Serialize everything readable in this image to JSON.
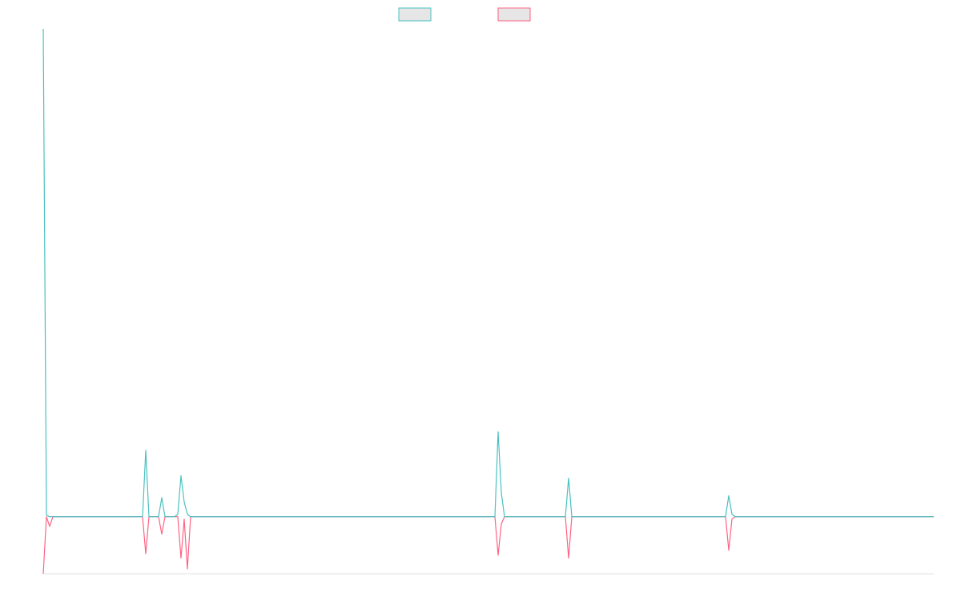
{
  "chart_data": {
    "type": "line",
    "x": [
      0,
      1,
      2,
      3,
      31,
      32,
      33,
      36,
      37,
      38,
      41,
      42,
      43,
      44,
      45,
      46,
      141,
      142,
      143,
      144,
      163,
      164,
      165,
      213,
      214,
      215,
      216,
      278
    ],
    "xlim": [
      0,
      278
    ],
    "ylim": [
      -11.7,
      100
    ],
    "series": [
      {
        "color": "#ff6384",
        "values": [
          -11.7,
          0,
          -2,
          0,
          0,
          -7.6,
          0,
          0,
          -3.6,
          0,
          0,
          0,
          -8.5,
          -0.5,
          -10.7,
          0,
          0,
          -7.9,
          -1.5,
          0,
          0,
          -8.5,
          0,
          0,
          -6.9,
          -0.5,
          0,
          0
        ]
      },
      {
        "color": "#4bc0c0",
        "values": [
          100,
          0.3,
          0,
          0,
          0,
          13.6,
          0,
          0,
          3.9,
          0,
          0,
          0.5,
          8.4,
          3,
          0.5,
          0,
          0,
          17.4,
          4.9,
          0,
          0,
          7.9,
          0,
          0,
          4.3,
          0.5,
          0,
          0
        ]
      }
    ],
    "legend": "top"
  }
}
